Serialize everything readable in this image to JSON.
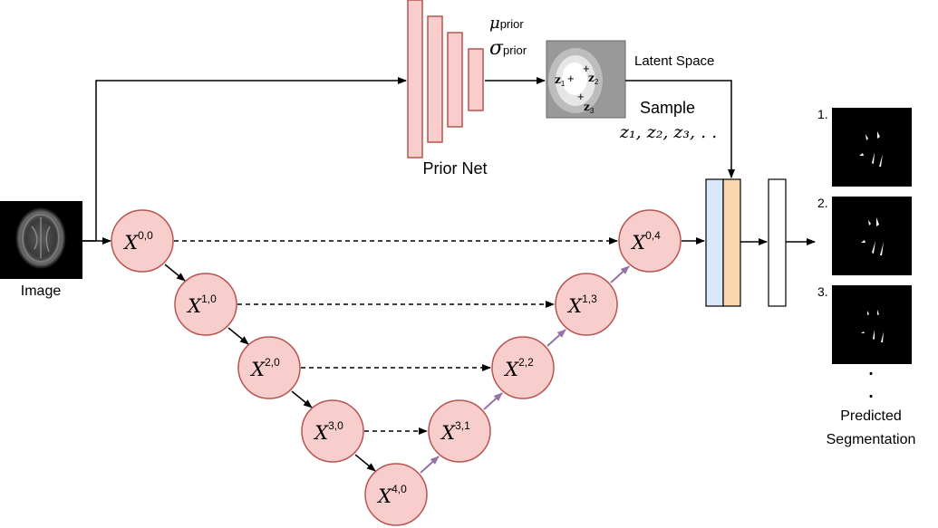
{
  "colors": {
    "node_fill": "#f8cecc",
    "node_stroke": "#b85450",
    "prior_fill": "#f8cecc",
    "prior_stroke": "#b85450",
    "up_arrow": "#9673a6",
    "concat_blue": "#dae8fc",
    "concat_orange": "#fad7ac",
    "line": "#000000"
  },
  "labels": {
    "image": "Image",
    "prior_net": "Prior Net",
    "mu_symbol": "μ",
    "mu_sub": "prior",
    "sigma_symbol": "σ",
    "sigma_sub": "prior",
    "latent_space": "Latent Space",
    "sample": "Sample",
    "sample_values": "z₁, z₂, z₃, . .",
    "predicted_line1": "Predicted",
    "predicted_line2": "Segmentation",
    "dots": "·"
  },
  "latent_points": [
    {
      "name": "z",
      "sub": "1"
    },
    {
      "name": "z",
      "sub": "2"
    },
    {
      "name": "z",
      "sub": "3"
    }
  ],
  "outputs": [
    {
      "label": "1."
    },
    {
      "label": "2."
    },
    {
      "label": "3."
    }
  ],
  "nodes": [
    {
      "id": "x00",
      "base": "X",
      "sup": "0,0"
    },
    {
      "id": "x10",
      "base": "X",
      "sup": "1,0"
    },
    {
      "id": "x20",
      "base": "X",
      "sup": "2,0"
    },
    {
      "id": "x30",
      "base": "X",
      "sup": "3,0"
    },
    {
      "id": "x40",
      "base": "X",
      "sup": "4,0"
    },
    {
      "id": "x31",
      "base": "X",
      "sup": "3,1"
    },
    {
      "id": "x22",
      "base": "X",
      "sup": "2,2"
    },
    {
      "id": "x13",
      "base": "X",
      "sup": "1,3"
    },
    {
      "id": "x04",
      "base": "X",
      "sup": "0,4"
    }
  ]
}
